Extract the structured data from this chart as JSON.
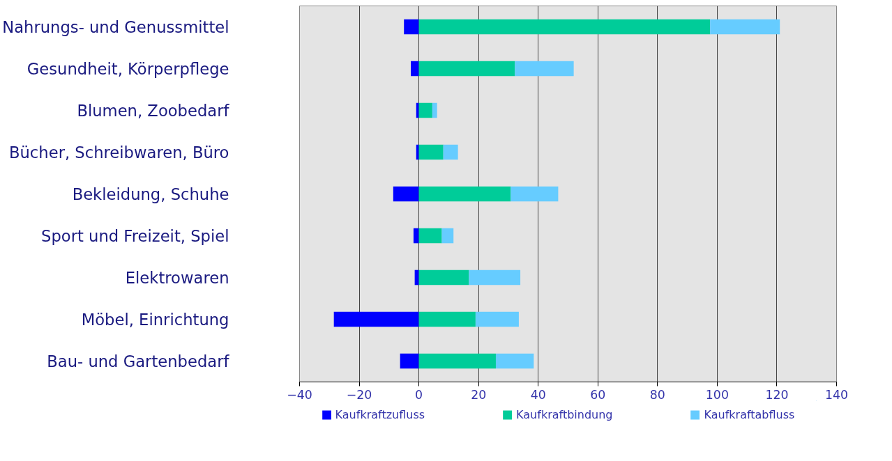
{
  "chart_data": {
    "type": "bar",
    "orientation": "horizontal",
    "stacked": true,
    "categories": [
      "Nahrungs- und Genussmittel",
      "Gesundheit, Körperpflege",
      "Blumen, Zoobedarf",
      "Bücher, Schreibwaren, Büro",
      "Bekleidung, Schuhe",
      "Sport und Freizeit, Spiel",
      "Elektrowaren",
      "Möbel, Einrichtung",
      "Bau- und Gartenbedarf"
    ],
    "series": [
      {
        "name": "Kaufkraftzufluss",
        "color": "#0000ff",
        "values": [
          -5,
          -2.7,
          -0.9,
          -0.9,
          -8.6,
          -1.8,
          -1.4,
          -28.5,
          -6.3
        ]
      },
      {
        "name": "Kaufkraftbindung",
        "color": "#00cc99",
        "values": [
          97.6,
          32.2,
          4.5,
          8.2,
          30.8,
          7.7,
          16.8,
          19.0,
          25.8
        ]
      },
      {
        "name": "Kaufkraftabfluss",
        "color": "#66ccff",
        "values": [
          23.4,
          19.7,
          1.6,
          4.9,
          15.9,
          3.9,
          17.2,
          14.5,
          12.7
        ]
      }
    ],
    "xlim": [
      -40,
      140
    ],
    "xticks": [
      -40,
      -20,
      0,
      20,
      40,
      60,
      80,
      100,
      120,
      140
    ],
    "grid": "x",
    "legend": "bottom"
  }
}
